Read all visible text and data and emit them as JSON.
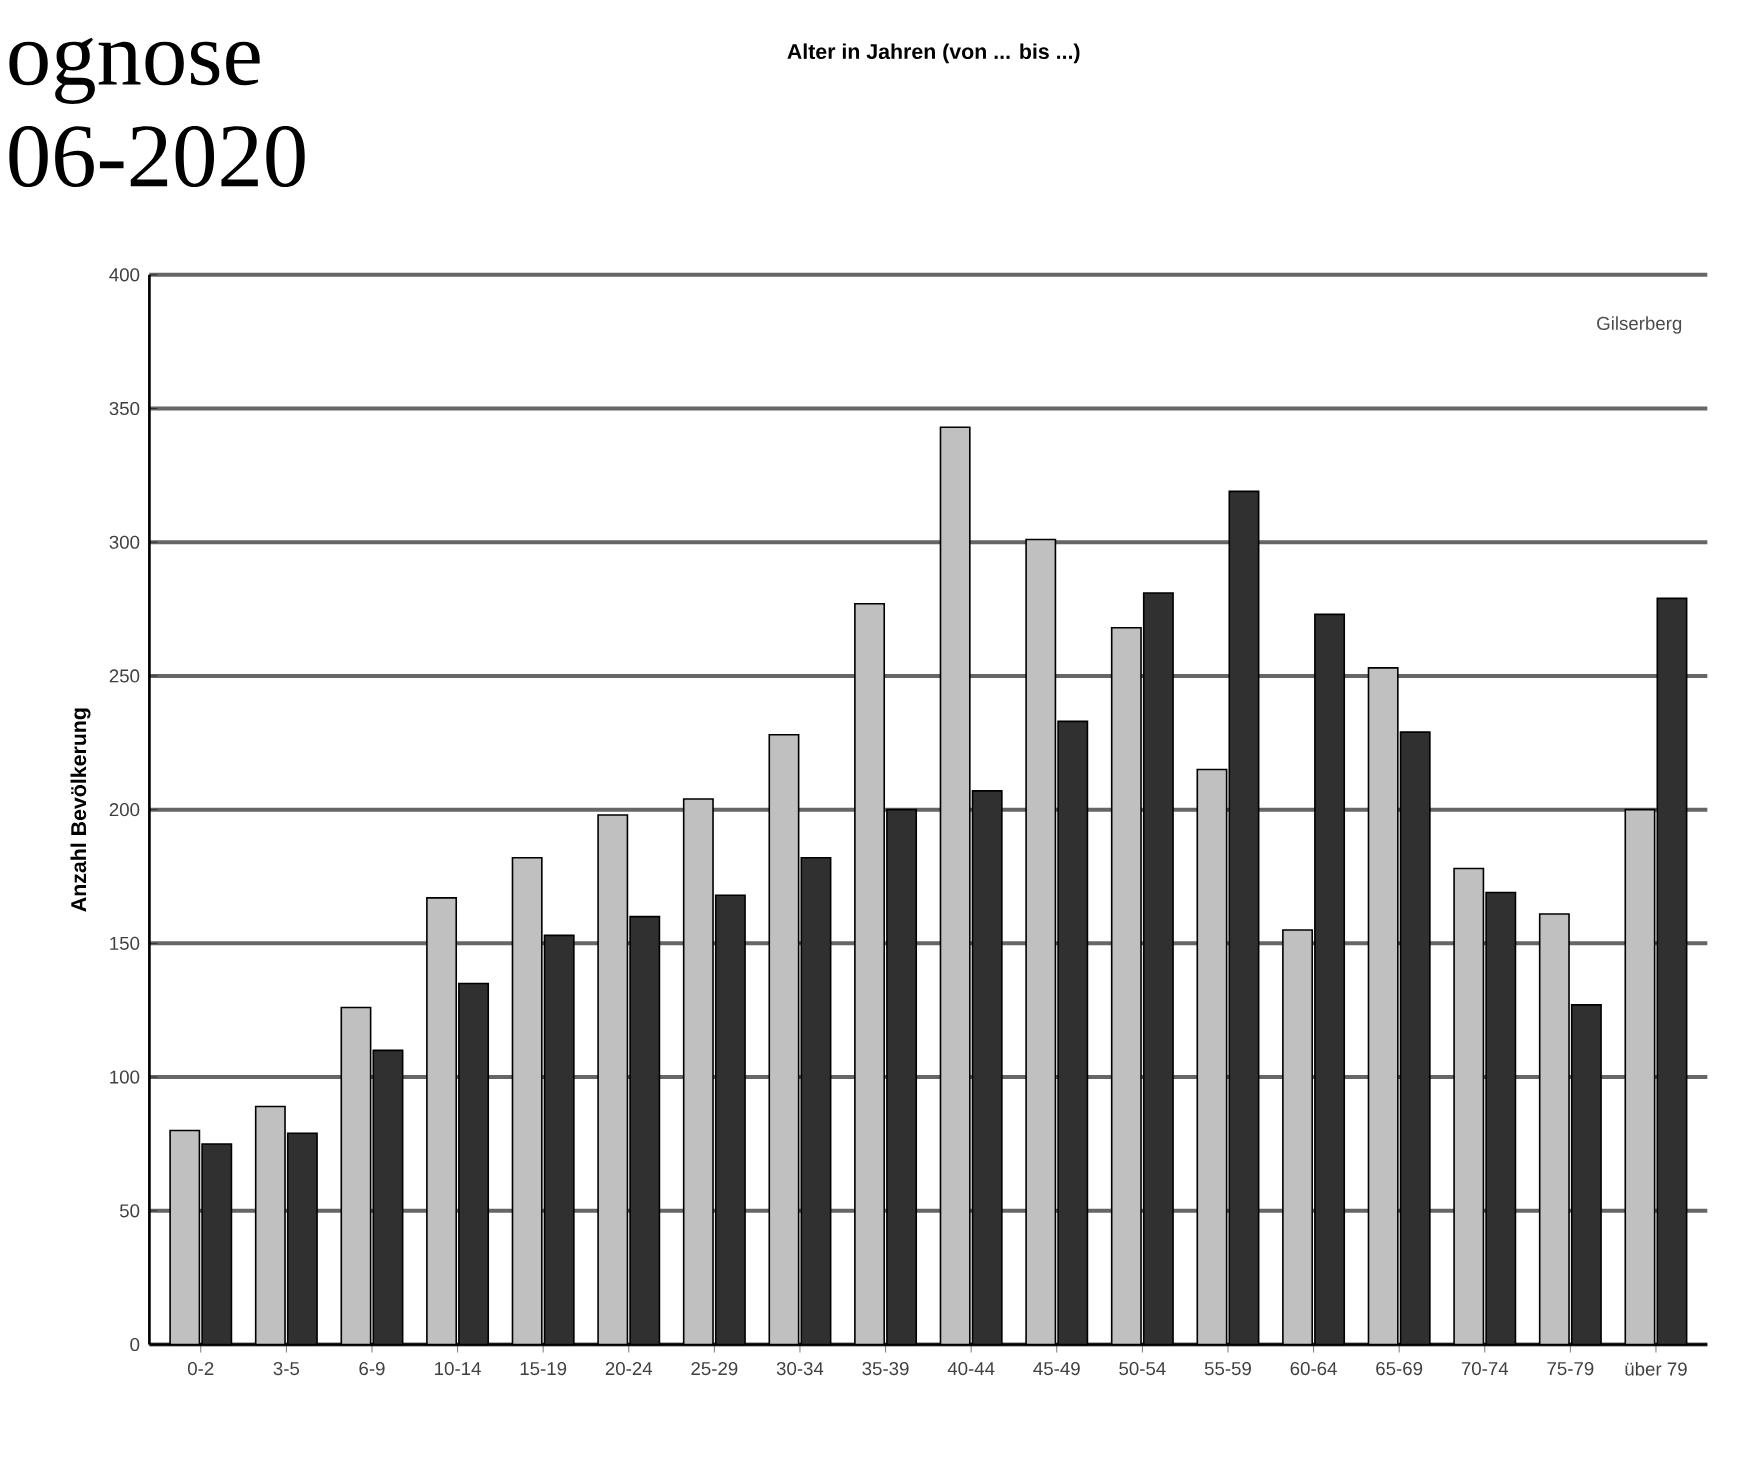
{
  "chart_data": {
    "type": "bar",
    "title": "ognose",
    "subtitle": "06-2020",
    "ylabel": "Anzahl Bevölkerung",
    "annotations": [
      "Alter in Jahren (von ... bis ...)",
      "Gilserberg"
    ],
    "categories": [
      "0-2",
      "3-5",
      "6-9",
      "10-14",
      "15-19",
      "20-24",
      "25-29",
      "30-34",
      "35-39",
      "40-44",
      "45-49",
      "50-54",
      "55-59",
      "60-64",
      "65-69",
      "70-74",
      "75-79",
      "über 79"
    ],
    "series": [
      {
        "color": "#c0c0c0",
        "values": [
          80,
          89,
          126,
          167,
          182,
          198,
          204,
          228,
          277,
          343,
          301,
          268,
          215,
          155,
          253,
          178,
          161,
          200
        ]
      },
      {
        "color": "#303030",
        "values": [
          75,
          79,
          110,
          135,
          153,
          160,
          168,
          182,
          200,
          207,
          233,
          281,
          319,
          273,
          229,
          169,
          127,
          279
        ]
      }
    ],
    "ylim": [
      0,
      400
    ],
    "yticks": [
      0,
      50,
      100,
      150,
      200,
      250,
      300,
      350,
      400
    ],
    "grid": "y"
  }
}
